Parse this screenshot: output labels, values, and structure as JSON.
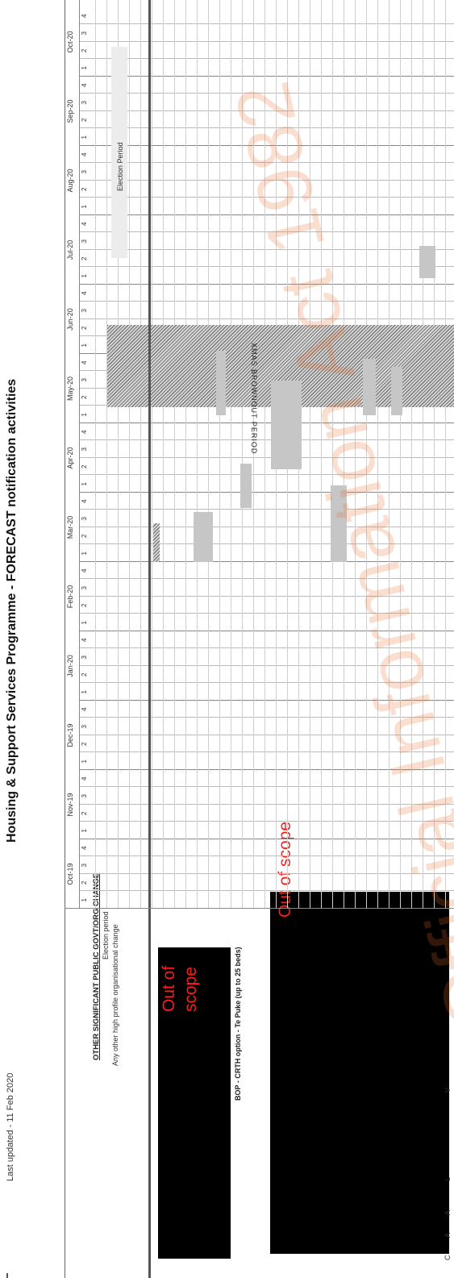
{
  "document": {
    "title": "Housing & Support Services Programme - FORECAST notification activities",
    "last_updated": "Last updated - 11 Feb 2020",
    "section_heading": "OTHER SIGNIFICANT PUBLIC GOVT/ORG CHANGE",
    "rows": [
      "Election period",
      "Any other high profile organisational change"
    ],
    "bop_label": "BOP - CRTH option - Te Puke (up to 25 beds)",
    "election_label": "Election Period",
    "xmas_label": "XMAS BROWNOUT PERIOD",
    "watermark": "Official Information Act 1982",
    "redaction_label": "Out of scope",
    "redaction_label_b": "Out of scope",
    "cut_letters": [
      "V",
      "L",
      "A",
      "A",
      "C"
    ]
  },
  "months": [
    {
      "label": "Oct-19",
      "weeks": [
        "1",
        "2",
        "3",
        "4"
      ]
    },
    {
      "label": "Nov-19",
      "weeks": [
        "1",
        "2",
        "3",
        "4"
      ]
    },
    {
      "label": "Dec-19",
      "weeks": [
        "1",
        "2",
        "3",
        "4"
      ]
    },
    {
      "label": "Jan-20",
      "weeks": [
        "1",
        "2",
        "3",
        "4"
      ]
    },
    {
      "label": "Feb-20",
      "weeks": [
        "1",
        "2",
        "3",
        "4"
      ]
    },
    {
      "label": "Mar-20",
      "weeks": [
        "1",
        "2",
        "3",
        "4"
      ]
    },
    {
      "label": "Apr-20",
      "weeks": [
        "1",
        "2",
        "3",
        "4"
      ]
    },
    {
      "label": "May-20",
      "weeks": [
        "1",
        "2",
        "3",
        "4"
      ]
    },
    {
      "label": "Jun-20",
      "weeks": [
        "1",
        "2",
        "3",
        "4"
      ]
    },
    {
      "label": "Jul-20",
      "weeks": [
        "1",
        "2",
        "3",
        "4"
      ]
    },
    {
      "label": "Aug-20",
      "weeks": [
        "1",
        "2",
        "3",
        "4"
      ]
    },
    {
      "label": "Sep-20",
      "weeks": [
        "1",
        "2",
        "3",
        "4"
      ]
    },
    {
      "label": "Oct-20",
      "weeks": [
        "1",
        "2",
        "3",
        "4"
      ]
    }
  ]
}
